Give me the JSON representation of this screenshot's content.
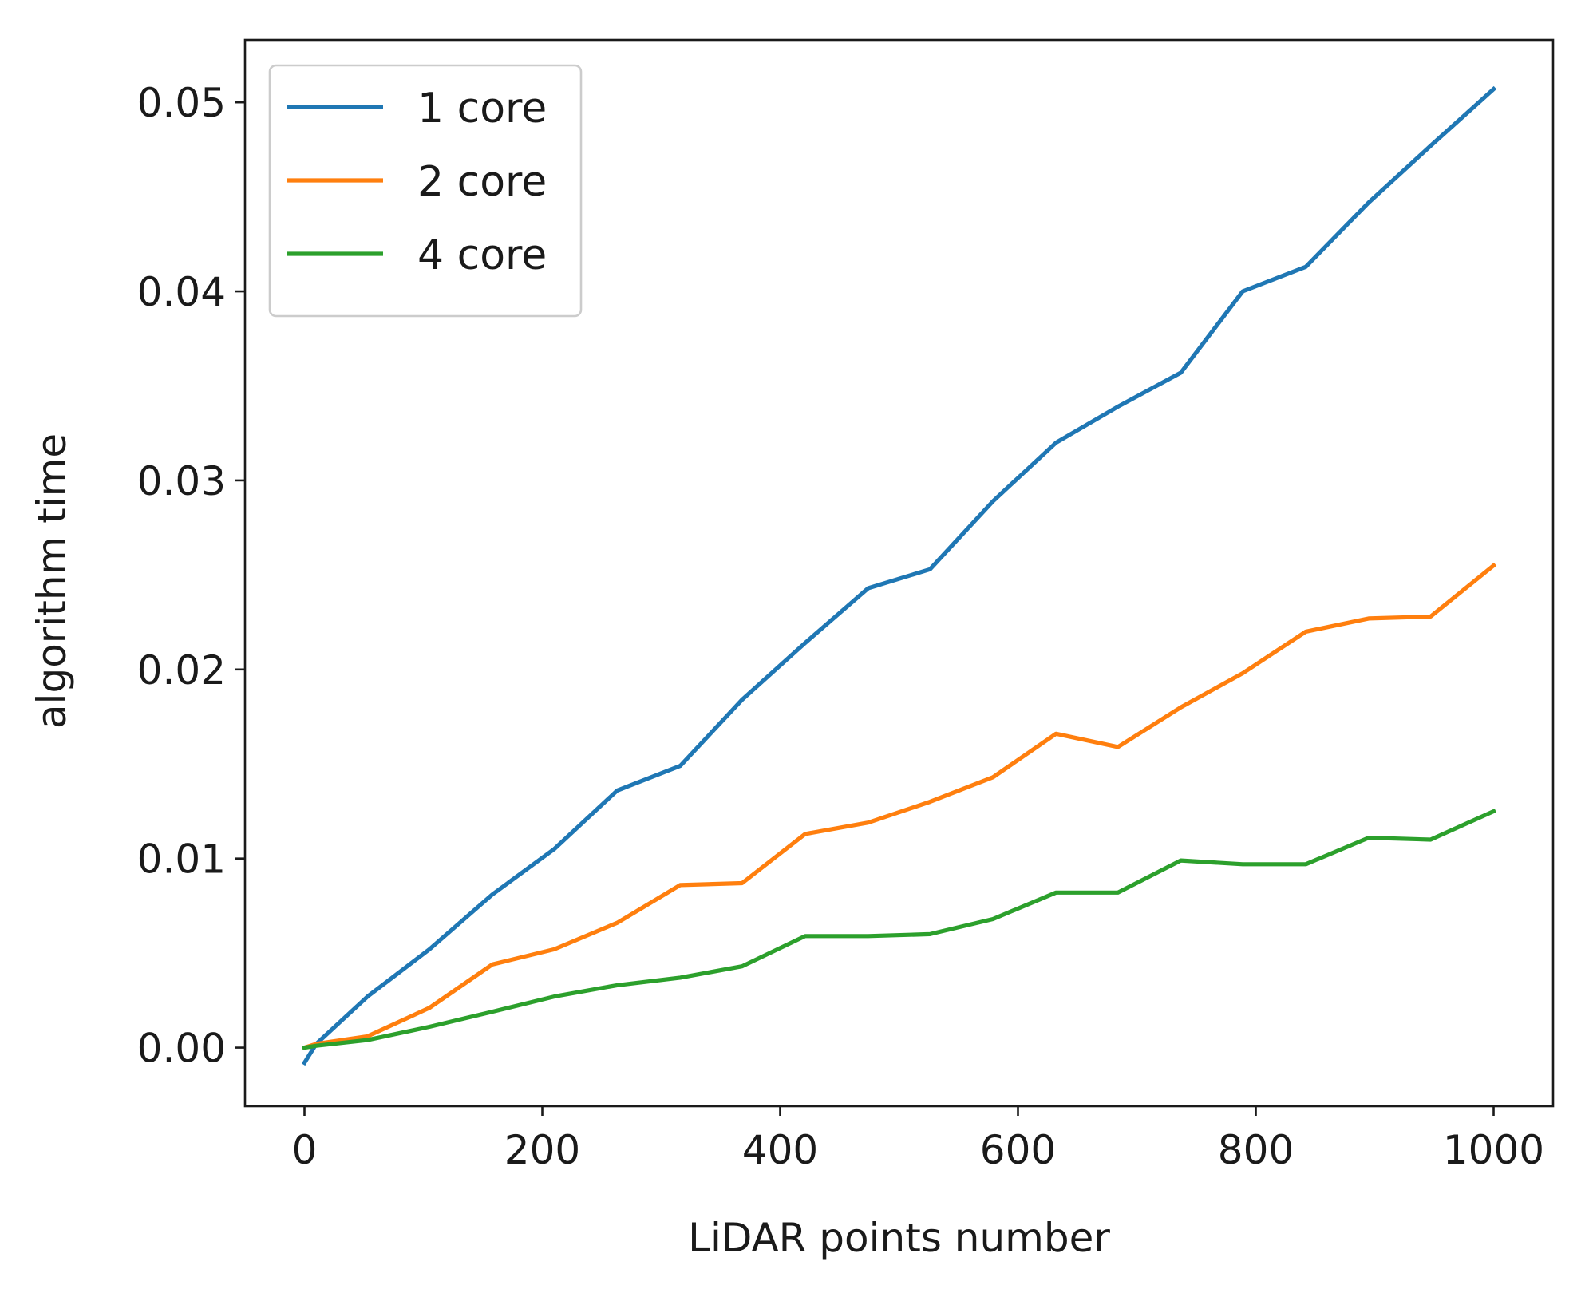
{
  "chart_data": {
    "type": "line",
    "title": "",
    "xlabel": "LiDAR points number",
    "ylabel": "algorithm time",
    "xlim": [
      -50,
      1050
    ],
    "ylim": [
      -0.0031,
      0.0533
    ],
    "xticks": [
      0,
      200,
      400,
      600,
      800,
      1000
    ],
    "xtick_labels": [
      "0",
      "200",
      "400",
      "600",
      "800",
      "1000"
    ],
    "yticks": [
      0.0,
      0.01,
      0.02,
      0.03,
      0.04,
      0.05
    ],
    "ytick_labels": [
      "0.00",
      "0.01",
      "0.02",
      "0.03",
      "0.04",
      "0.05"
    ],
    "grid": false,
    "legend_position": "upper-left",
    "x": [
      0,
      10,
      53,
      105,
      158,
      210,
      263,
      316,
      368,
      421,
      474,
      526,
      579,
      632,
      684,
      737,
      789,
      842,
      895,
      947,
      1000
    ],
    "series": [
      {
        "name": "1 core",
        "color": "#1f77b4",
        "values": [
          -0.0008,
          0.0002,
          0.0027,
          0.0052,
          0.0081,
          0.0105,
          0.0136,
          0.0149,
          0.0184,
          0.0214,
          0.0243,
          0.0253,
          0.0289,
          0.032,
          0.0339,
          0.0357,
          0.04,
          0.0413,
          0.0447,
          0.0477,
          0.0507
        ]
      },
      {
        "name": "2 core",
        "color": "#ff7f0e",
        "values": [
          0.0,
          0.0002,
          0.0006,
          0.0021,
          0.0044,
          0.0052,
          0.0066,
          0.0086,
          0.0087,
          0.0113,
          0.0119,
          0.013,
          0.0143,
          0.0166,
          0.0159,
          0.018,
          0.0198,
          0.022,
          0.0227,
          0.0228,
          0.0255
        ]
      },
      {
        "name": "4 core",
        "color": "#2ca02c",
        "values": [
          0.0,
          0.0001,
          0.0004,
          0.0011,
          0.0019,
          0.0027,
          0.0033,
          0.0037,
          0.0043,
          0.0059,
          0.0059,
          0.006,
          0.0068,
          0.0082,
          0.0082,
          0.0099,
          0.0097,
          0.0097,
          0.0111,
          0.011,
          0.0125
        ]
      }
    ]
  }
}
